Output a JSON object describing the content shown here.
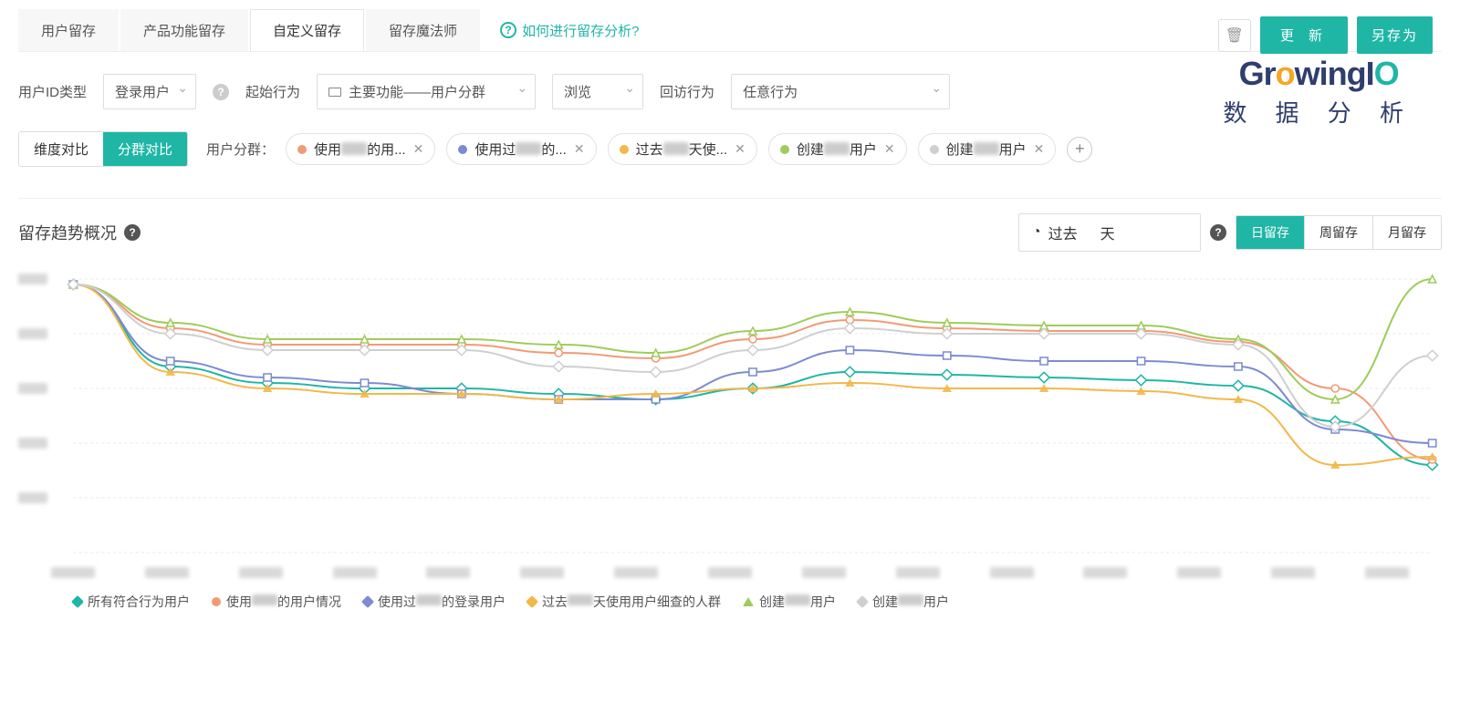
{
  "tabs": {
    "items": [
      "用户留存",
      "产品功能留存",
      "自定义留存",
      "留存魔法师"
    ],
    "active_index": 2,
    "help_text": "如何进行留存分析?"
  },
  "top_buttons": {
    "update": "更 新",
    "save_as": "另存为"
  },
  "brand": {
    "name_pre": "Gr",
    "name_mid": "wingI",
    "sub": "数 据 分 析"
  },
  "filters": {
    "user_id_label": "用户ID类型",
    "user_id_value": "登录用户",
    "start_label": "起始行为",
    "start_value": "主要功能——用户分群",
    "browse_value": "浏览",
    "return_label": "回访行为",
    "return_value": "任意行为"
  },
  "segment": {
    "toggle": [
      "维度对比",
      "分群对比"
    ],
    "toggle_active": 1,
    "label": "用户分群：",
    "chips": [
      {
        "color": "#f29a76",
        "pre": "使用",
        "post": "的用..."
      },
      {
        "color": "#7d8bd0",
        "pre": "使用过",
        "post": "的..."
      },
      {
        "color": "#f2b84b",
        "pre": "过去",
        "post": "天使..."
      },
      {
        "color": "#9fcc5b",
        "pre": "创建",
        "post": "用户"
      },
      {
        "color": "#cfcfcf",
        "pre": "创建",
        "post": "用户"
      }
    ]
  },
  "chart": {
    "title": "留存趋势概况",
    "date_prefix": "过去",
    "date_suffix": "天",
    "period_tabs": [
      "日留存",
      "周留存",
      "月留存"
    ],
    "period_active": 0,
    "x_points": 15,
    "ylim": [
      0,
      100
    ],
    "grid_y": [
      0,
      20,
      40,
      60,
      80,
      100
    ],
    "grid_color": "#e9e9e9",
    "series": [
      {
        "name": "所有符合行为用户",
        "color": "#1fb6a6",
        "marker": "diamond",
        "values": [
          98,
          68,
          62,
          60,
          60,
          58,
          56,
          60,
          66,
          65,
          64,
          63,
          61,
          48,
          32
        ]
      },
      {
        "name_pre": "使用",
        "name_post": "的用户情况",
        "color": "#f29a76",
        "marker": "circle",
        "values": [
          98,
          82,
          76,
          76,
          76,
          73,
          71,
          78,
          85,
          82,
          81,
          81,
          77,
          60,
          34
        ]
      },
      {
        "name_pre": "使用过",
        "name_post": "的登录用户",
        "color": "#7d8bd0",
        "marker": "square",
        "values": [
          98,
          70,
          64,
          62,
          58,
          56,
          56,
          66,
          74,
          72,
          70,
          70,
          68,
          45,
          40
        ]
      },
      {
        "name_pre": "过去",
        "name_post": "天使用用户细查的人群",
        "color": "#f2b84b",
        "marker": "star",
        "values": [
          98,
          66,
          60,
          58,
          58,
          56,
          58,
          60,
          62,
          60,
          60,
          59,
          56,
          32,
          35
        ]
      },
      {
        "name_pre": "创建",
        "name_post": "用户",
        "color": "#9fcc5b",
        "marker": "tri",
        "values": [
          98,
          84,
          78,
          78,
          78,
          76,
          73,
          81,
          88,
          84,
          83,
          83,
          78,
          56,
          100
        ]
      },
      {
        "name_pre": "创建",
        "name_post": "用户",
        "color": "#cfcfcf",
        "marker": "diamond",
        "values": [
          98,
          80,
          74,
          74,
          74,
          68,
          66,
          74,
          82,
          80,
          80,
          80,
          76,
          46,
          72
        ]
      }
    ]
  }
}
